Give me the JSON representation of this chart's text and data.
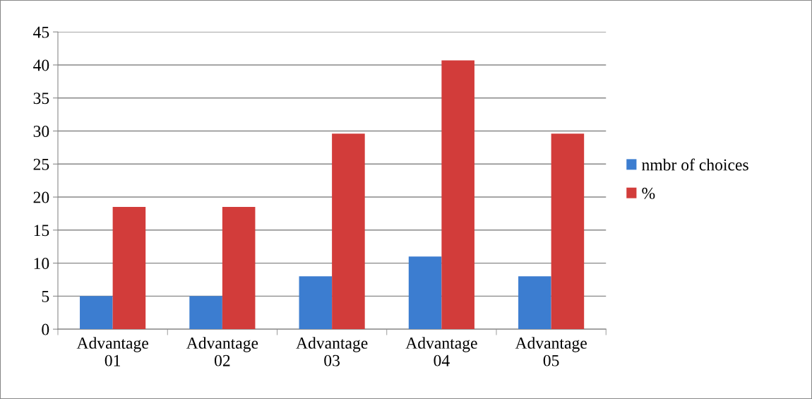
{
  "chart_data": {
    "type": "bar",
    "categories": [
      "Advantage\n01",
      "Advantage\n02",
      "Advantage\n03",
      "Advantage\n04",
      "Advantage\n05"
    ],
    "series": [
      {
        "name": "nmbr of choices",
        "color": "#3c7dd0",
        "values": [
          5,
          5,
          8,
          11,
          8
        ]
      },
      {
        "name": "%",
        "color": "#d23c3a",
        "values": [
          18.5,
          18.5,
          29.6,
          40.7,
          29.6
        ]
      }
    ],
    "ylim": [
      0,
      45
    ],
    "yticks": [
      0,
      5,
      10,
      15,
      20,
      25,
      30,
      35,
      40,
      45
    ],
    "grid": "y",
    "legend": "right"
  }
}
